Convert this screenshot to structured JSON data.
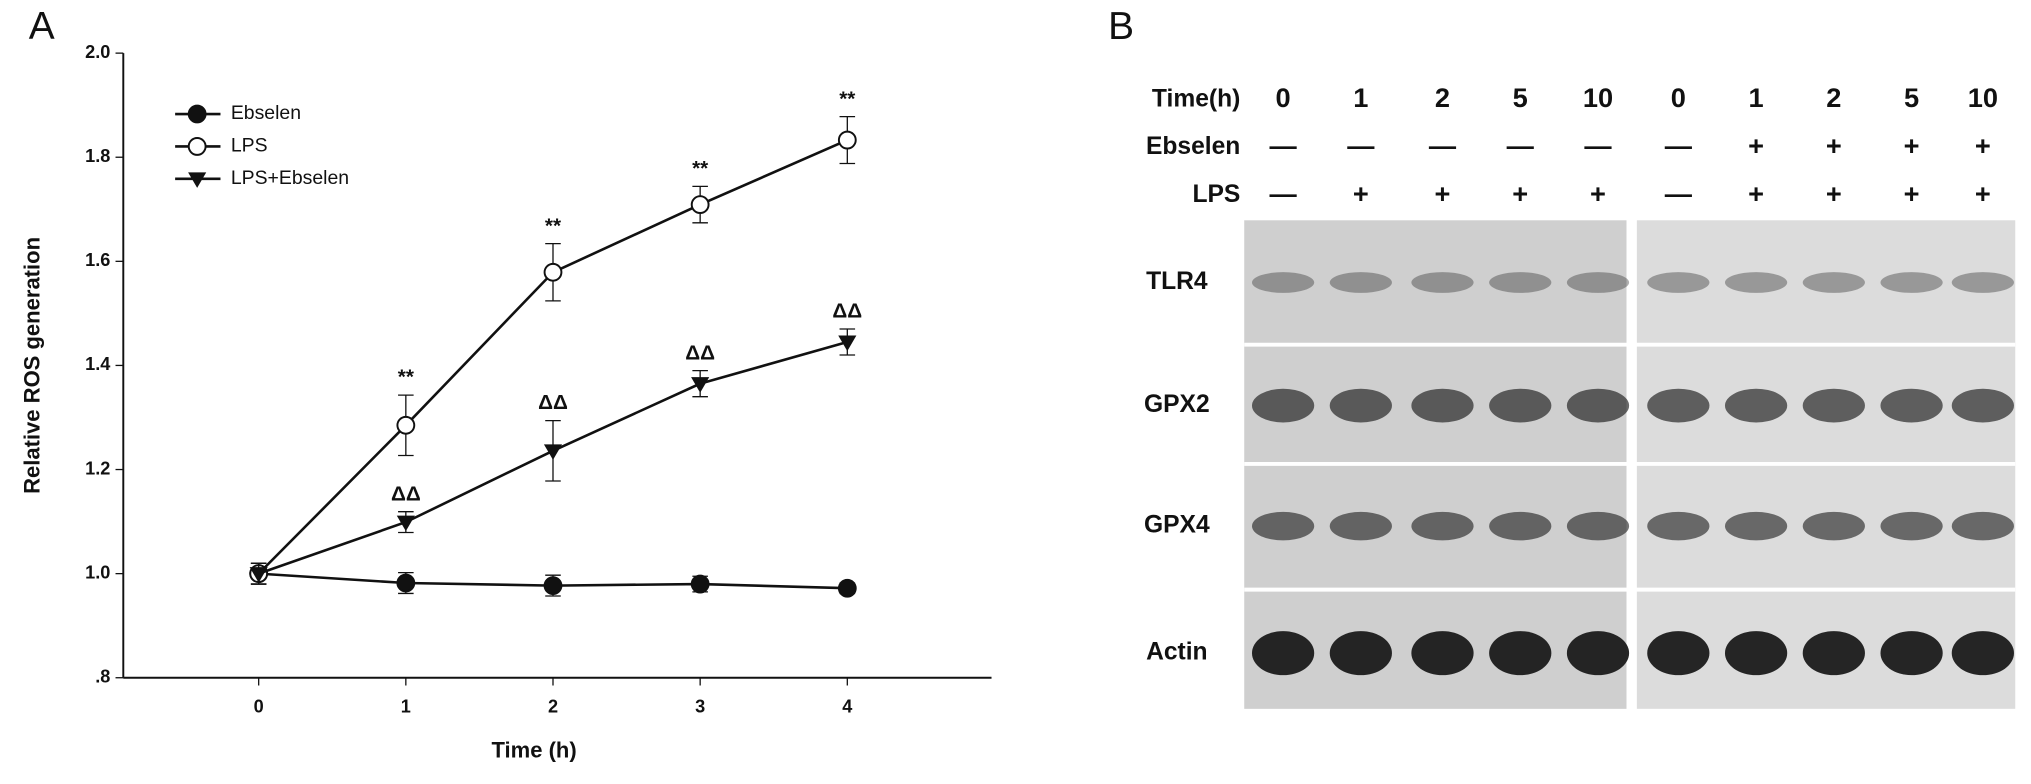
{
  "chart_data": {
    "type": "line",
    "panel_label": "A",
    "x_label": "Time (h)",
    "y_label": "Relative ROS generation",
    "x": [
      0,
      1,
      2,
      3,
      4
    ],
    "xlim": [
      -0.92,
      4.98
    ],
    "xticks": [
      0,
      1,
      2,
      3,
      4
    ],
    "ylim": [
      0.8,
      2.0
    ],
    "yticks": [
      {
        "value": 0.8,
        "label": ".8"
      },
      {
        "value": 1.0,
        "label": "1.0"
      },
      1.2,
      1.4,
      1.6,
      1.8,
      {
        "value": 2.0,
        "label": "2.0"
      }
    ],
    "series": [
      {
        "name": "Ebselen",
        "color": "#111111",
        "marker": "circle-filled",
        "values": [
          1.0,
          0.982,
          0.977,
          0.98,
          0.972
        ],
        "errors": [
          0.02,
          0.02,
          0.02,
          0.015,
          0.01
        ],
        "significance": [
          null,
          null,
          null,
          null,
          null
        ]
      },
      {
        "name": "LPS",
        "color": "#111111",
        "marker": "circle-open",
        "values": [
          1.0,
          1.285,
          1.579,
          1.709,
          1.833
        ],
        "errors": [
          0.02,
          0.058,
          0.055,
          0.035,
          0.045
        ],
        "significance": [
          null,
          "**",
          "**",
          "**",
          "**"
        ]
      },
      {
        "name": "LPS+Ebselen",
        "color": "#111111",
        "marker": "triangle-down",
        "values": [
          1.0,
          1.099,
          1.236,
          1.365,
          1.445
        ],
        "errors": [
          0.02,
          0.02,
          0.058,
          0.025,
          0.025
        ],
        "significance": [
          null,
          "ΔΔ",
          "ΔΔ",
          "ΔΔ",
          "ΔΔ"
        ]
      }
    ]
  },
  "blot": {
    "panel_label": "B",
    "header_rows": [
      {
        "label": "Time(h)",
        "cells": [
          "0",
          "1",
          "2",
          "5",
          "10",
          "0",
          "1",
          "2",
          "5",
          "10"
        ]
      },
      {
        "label": "Ebselen",
        "cells": [
          "—",
          "—",
          "—",
          "—",
          "—",
          "—",
          "+",
          "+",
          "+",
          "+"
        ]
      },
      {
        "label": "LPS",
        "cells": [
          "—",
          "+",
          "+",
          "+",
          "+",
          "—",
          "+",
          "+",
          "+",
          "+"
        ]
      }
    ],
    "rows": [
      "TLR4",
      "GPX2",
      "GPX4",
      "Actin"
    ]
  }
}
